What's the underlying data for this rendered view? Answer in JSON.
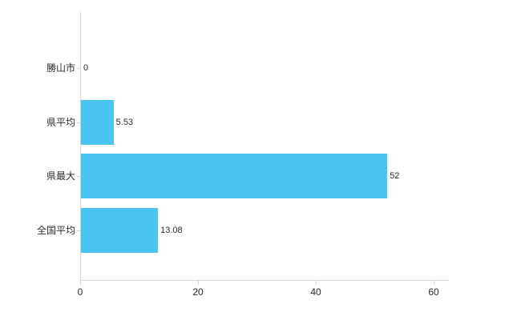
{
  "chart_data": {
    "type": "bar",
    "orientation": "horizontal",
    "title": "",
    "categories": [
      "勝山市",
      "県平均",
      "県最大",
      "全国平均"
    ],
    "values": [
      0,
      5.53,
      52,
      13.08
    ],
    "value_labels": [
      "0",
      "5.53",
      "52",
      "13.08"
    ],
    "x_ticks": [
      0,
      20,
      40,
      60
    ],
    "x_tick_labels": [
      "0",
      "20",
      "40",
      "60"
    ],
    "xlim": [
      0,
      62.6
    ],
    "grid": false,
    "legend": "none",
    "colors": {
      "bar": "#49c3f0",
      "axis": "#d6d6d6",
      "text": "#2b2b2b",
      "background": "#ffffff"
    }
  }
}
